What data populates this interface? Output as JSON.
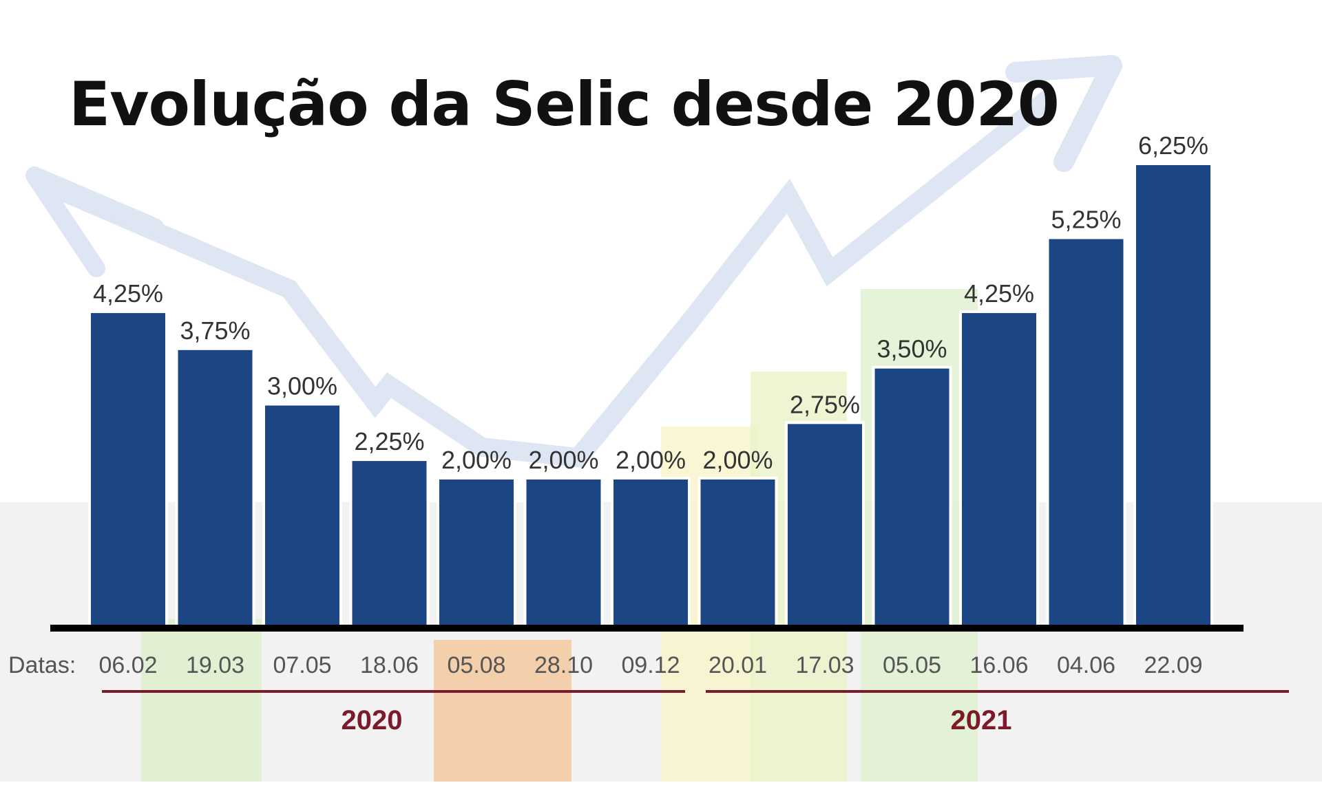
{
  "chart_data": {
    "type": "bar",
    "title": "Evolução da Selic desde 2020",
    "axis_prefix": "Datas:",
    "categories": [
      "06.02",
      "19.03",
      "07.05",
      "18.06",
      "05.08",
      "28.10",
      "09.12",
      "20.01",
      "17.03",
      "05.05",
      "16.06",
      "04.06",
      "22.09"
    ],
    "values": [
      4.25,
      3.75,
      3.0,
      2.25,
      2.0,
      2.0,
      2.0,
      2.0,
      2.75,
      3.5,
      4.25,
      5.25,
      6.25
    ],
    "value_labels": [
      "4,25%",
      "3,75%",
      "3,00%",
      "2,25%",
      "2,00%",
      "2,00%",
      "2,00%",
      "2,00%",
      "2,75%",
      "3,50%",
      "4,25%",
      "5,25%",
      "6,25%"
    ],
    "groups": [
      {
        "label": "2020",
        "start_index": 0,
        "end_index": 6
      },
      {
        "label": "2021",
        "start_index": 7,
        "end_index": 12
      }
    ],
    "ylim": [
      0,
      6.25
    ],
    "xlabel": "",
    "ylabel": "",
    "grid": false,
    "colors": {
      "bar": "#1c4584",
      "baseline": "#000000",
      "group_line": "#7a1a2a",
      "arrow": "#dde6f2"
    }
  }
}
